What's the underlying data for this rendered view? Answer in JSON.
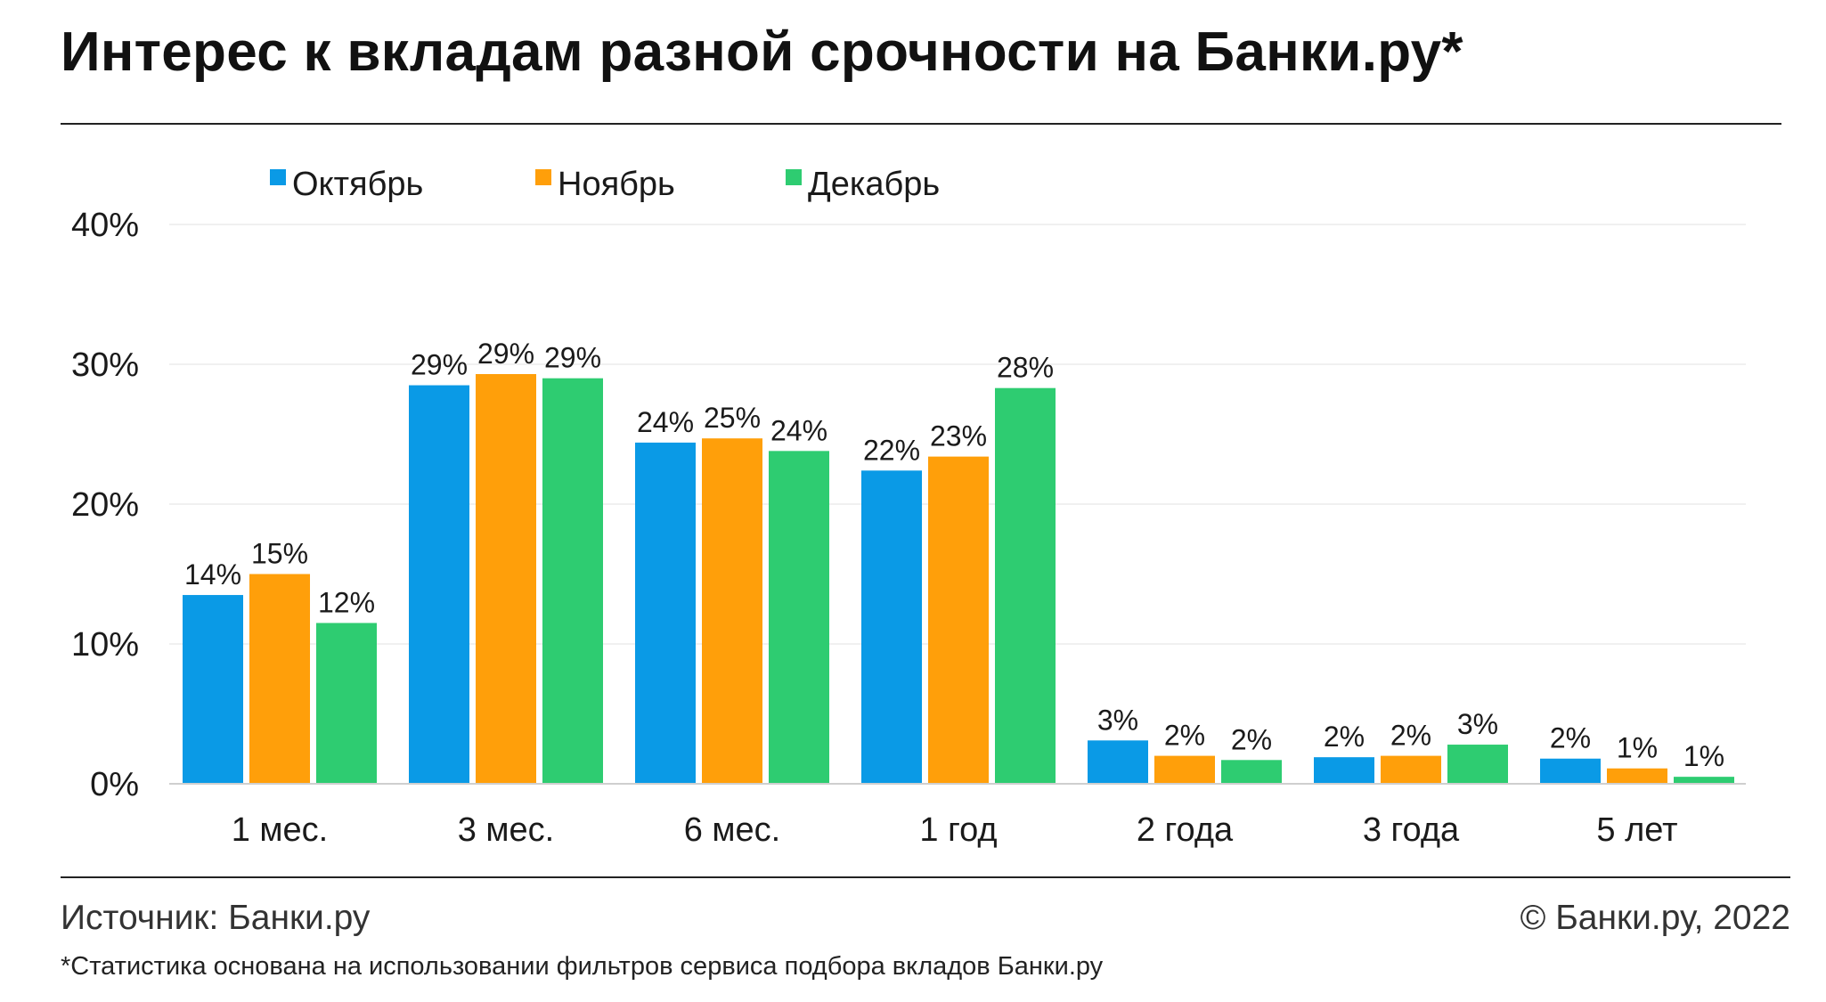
{
  "header": {
    "title": "Интерес к вкладам разной срочности на Банки.ру*"
  },
  "footer": {
    "source": "Источник: Банки.ру",
    "copyright": "© Банки.ру, 2022",
    "note": "*Статистика основана на использовании фильтров сервиса подбора вкладов Банки.ру"
  },
  "chart_data": {
    "type": "bar",
    "categories": [
      "1 мес.",
      "3 мес.",
      "6 мес.",
      "1 год",
      "2 года",
      "3 года",
      "5 лет"
    ],
    "series": [
      {
        "name": "Октябрь",
        "color": "#0a9ae6",
        "values": [
          13.5,
          28.5,
          24.4,
          22.4,
          3.1,
          1.9,
          1.8
        ],
        "labels": [
          "14%",
          "29%",
          "24%",
          "22%",
          "3%",
          "2%",
          "2%"
        ]
      },
      {
        "name": "Ноябрь",
        "color": "#ff9f0a",
        "values": [
          15.0,
          29.3,
          24.7,
          23.4,
          2.0,
          2.0,
          1.1
        ],
        "labels": [
          "15%",
          "29%",
          "25%",
          "23%",
          "2%",
          "2%",
          "1%"
        ]
      },
      {
        "name": "Декабрь",
        "color": "#2ecc71",
        "values": [
          11.5,
          29.0,
          23.8,
          28.3,
          1.7,
          2.8,
          0.5
        ],
        "labels": [
          "12%",
          "29%",
          "24%",
          "28%",
          "2%",
          "3%",
          "1%"
        ]
      }
    ],
    "y_ticks": [
      "0%",
      "10%",
      "20%",
      "30%",
      "40%"
    ],
    "ylim": [
      0,
      40
    ],
    "grid": true,
    "legend": "top-left"
  }
}
